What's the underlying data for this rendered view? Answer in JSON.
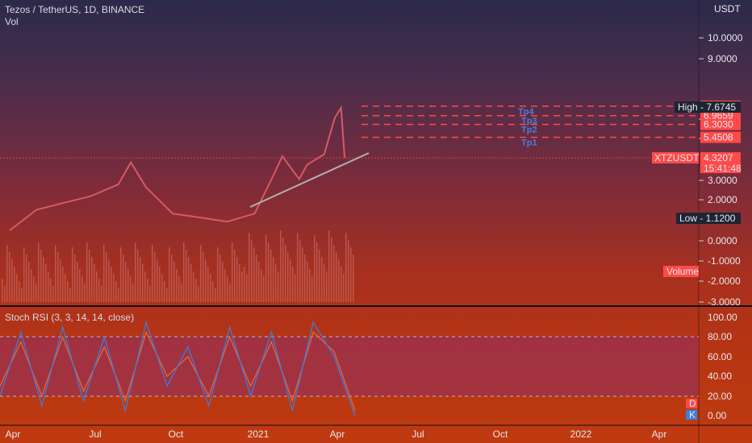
{
  "header": {
    "title": "Tezos / TetherUS, 1D, BINANCE",
    "vol_label": "Vol",
    "rsi_title": "Stoch RSI (3, 3, 14, 14, close)"
  },
  "price_axis": {
    "currency": "USDT",
    "ticks": [
      "10.0000",
      "9.0000",
      "6.0000",
      "5.0000",
      "3.0000",
      "2.0000"
    ],
    "volume_ticks": [
      "0.0000",
      "-1.0000",
      "-2.0000",
      "-3.0000"
    ],
    "volume_tag": "Volume",
    "high_tag": {
      "label": "High",
      "value": "7.6745"
    },
    "low_tag": {
      "label": "Low",
      "value": "1.1200"
    },
    "symbol_tag": {
      "label": "XTZUSDT",
      "value": "4.3207",
      "countdown": "15:41:48"
    },
    "level_tags": [
      "7.7550",
      "6.9659",
      "6.3030",
      "5.4508"
    ]
  },
  "rsi_axis": {
    "ticks": [
      "100.00",
      "80.00",
      "60.00",
      "40.00",
      "20.00",
      "0.00"
    ],
    "d_tag": "D",
    "k_tag": "K"
  },
  "time_axis": [
    "Apr",
    "Jul",
    "Oct",
    "2021",
    "Apr",
    "Jul",
    "Oct",
    "2022",
    "Apr"
  ],
  "annotations": [
    "Tp4",
    "Tp3",
    "Tp2",
    "Tp1"
  ],
  "colors": {
    "grid": "#ffffff22",
    "candle": "#d65a63",
    "level": "#ff4a4a",
    "trend": "#b0b0b0",
    "k": "#3d7de0",
    "d": "#e06a3a",
    "tp": "#4a7fe0"
  },
  "chart_data": {
    "type": "line",
    "series": [
      {
        "name": "XTZUSDT",
        "x": [
          "2020-04-01",
          "2020-05-01",
          "2020-06-01",
          "2020-07-01",
          "2020-08-01",
          "2020-08-15",
          "2020-09-01",
          "2020-10-01",
          "2020-11-01",
          "2020-12-01",
          "2021-01-01",
          "2021-01-20",
          "2021-02-01",
          "2021-02-20",
          "2021-03-01",
          "2021-03-20",
          "2021-04-01",
          "2021-04-08",
          "2021-04-12"
        ],
        "values": [
          1.9,
          2.4,
          2.6,
          2.8,
          3.2,
          4.1,
          3.1,
          2.3,
          2.2,
          2.1,
          2.3,
          3.4,
          4.4,
          3.4,
          4.0,
          4.5,
          6.8,
          7.6,
          4.32
        ]
      }
    ],
    "levels": [
      7.755,
      6.9659,
      6.303,
      5.4508
    ],
    "high": 7.6745,
    "low": 1.12,
    "last": 4.3207,
    "stoch_rsi": {
      "k": [
        20,
        85,
        10,
        90,
        15,
        80,
        5,
        95,
        30,
        70,
        10,
        90,
        20,
        85,
        5,
        95,
        60,
        0
      ],
      "d": [
        30,
        75,
        20,
        80,
        25,
        70,
        15,
        85,
        40,
        60,
        20,
        80,
        30,
        75,
        15,
        85,
        65,
        5
      ]
    }
  }
}
